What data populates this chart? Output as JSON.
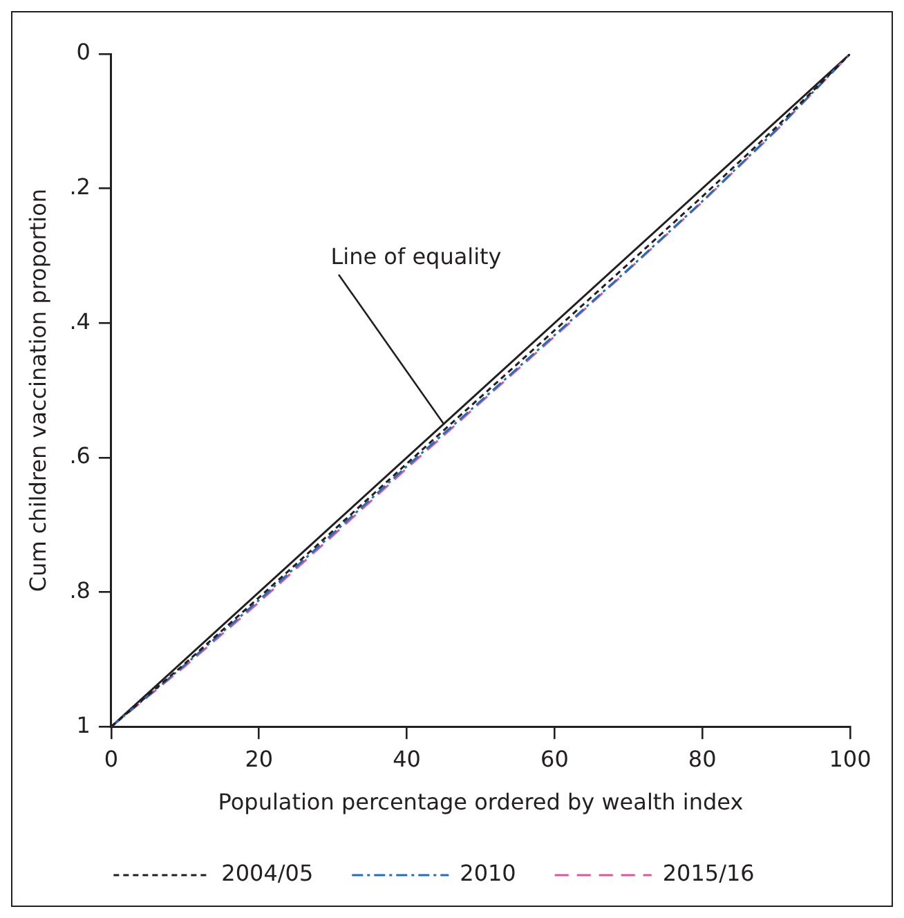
{
  "chart_data": {
    "type": "line",
    "xlabel": "Population percentage ordered by wealth index",
    "ylabel": "Cum children vaccination proportion",
    "x": [
      0,
      10,
      20,
      30,
      40,
      50,
      60,
      70,
      80,
      90,
      100
    ],
    "series": [
      {
        "name": "2004/05",
        "color": "#231f20",
        "line_style": "dashed",
        "values": [
          1,
          0.906,
          0.808,
          0.709,
          0.609,
          0.51,
          0.411,
          0.312,
          0.212,
          0.109,
          0
        ]
      },
      {
        "name": "2010",
        "color": "#1f6fc0",
        "line_style": "dashdot",
        "values": [
          1,
          0.908,
          0.812,
          0.713,
          0.613,
          0.516,
          0.418,
          0.32,
          0.219,
          0.113,
          0
        ]
      },
      {
        "name": "2015/16",
        "color": "#e0559a",
        "line_style": "longdash",
        "values": [
          1,
          0.91,
          0.815,
          0.716,
          0.616,
          0.518,
          0.42,
          0.321,
          0.22,
          0.114,
          0
        ]
      },
      {
        "color": "#231f20",
        "line_style": "solid",
        "x": [
          0,
          100
        ],
        "values": [
          1,
          0
        ]
      }
    ],
    "annotations": [
      {
        "text": "Line of equality",
        "x": 45,
        "y": 0.55
      }
    ],
    "xlim": [
      0,
      100
    ],
    "xticks": [
      0,
      20,
      40,
      60,
      80,
      100
    ],
    "ylim": [
      1,
      0
    ],
    "yticks": [
      0,
      {
        "value": 0.2,
        "label": ".2"
      },
      {
        "value": 0.4,
        "label": ".4"
      },
      {
        "value": 0.6,
        "label": ".6"
      },
      {
        "value": 0.8,
        "label": ".8"
      },
      1
    ],
    "grid": false,
    "legend": "bottom",
    "marker": "none"
  }
}
